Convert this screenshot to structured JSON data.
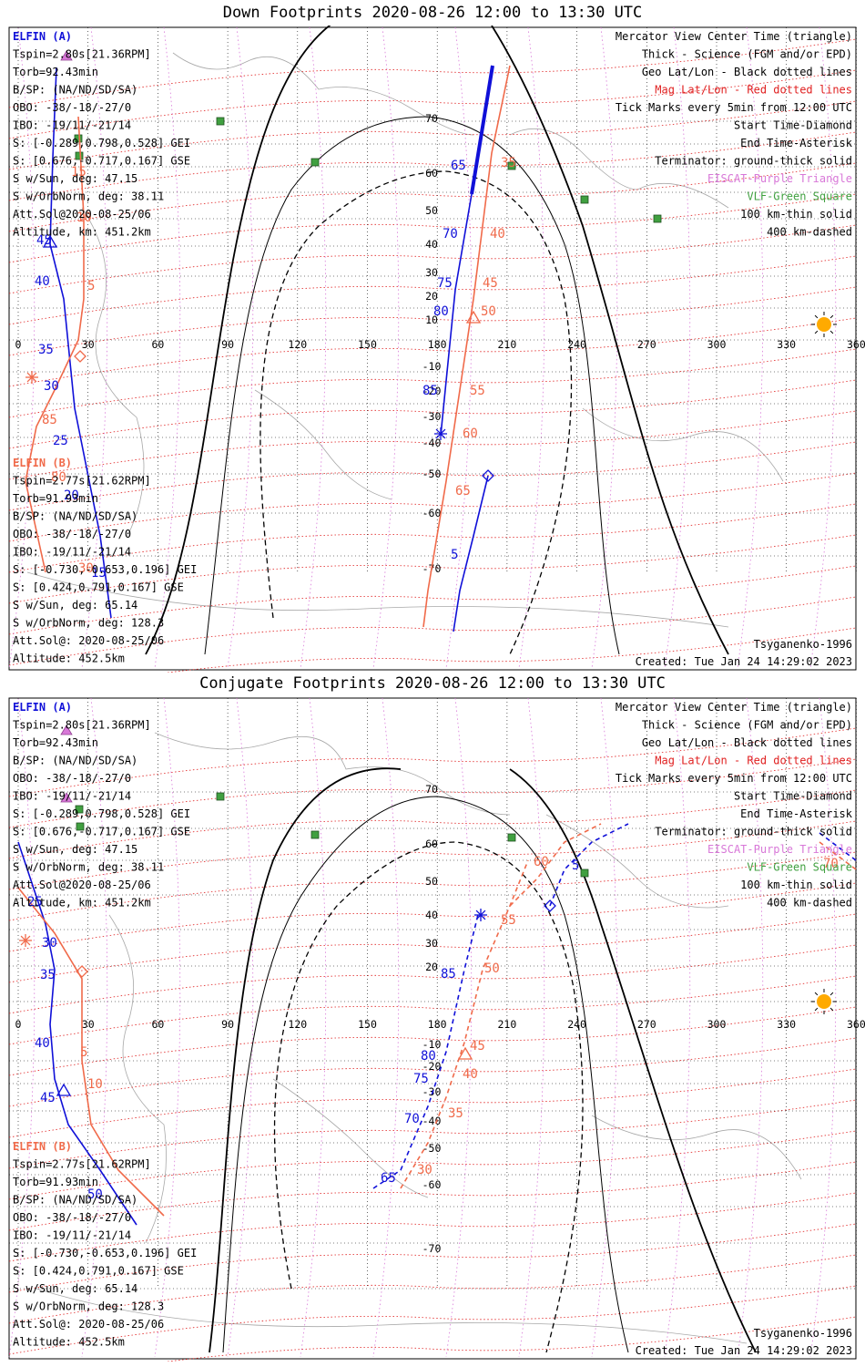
{
  "colors": {
    "elfin_a": "#1010d8",
    "elfin_b": "#f06a4a",
    "geo_grid": "#000000",
    "mag_grid": "#e02020",
    "eiscat": "#d878d8",
    "vlf": "#40a040",
    "coast": "#a8a8a8",
    "sun": "#ffaa00"
  },
  "lon_ticks": [
    "0",
    "30",
    "60",
    "90",
    "120",
    "150",
    "180",
    "210",
    "240",
    "270",
    "300",
    "330",
    "360"
  ],
  "panels": [
    {
      "title": "Down Footprints 2020-08-26 12:00 to 13:30 UTC",
      "lat_ticks": [
        "70",
        "60",
        "50",
        "40",
        "30",
        "20",
        "10",
        "-10",
        "-20",
        "-30",
        "-40",
        "-50",
        "-60",
        "-70"
      ],
      "elfin_a": {
        "name": "ELFIN (A)",
        "lines": [
          "Tspin=2.80s[21.36RPM]",
          "Torb=92.43min",
          "B/SP: (NA/ND/SD/SA)",
          "OBO: -38/-18/-27/0",
          "IBO: -19/11/-21/14",
          "S: [-0.289,0.798,0.528] GEI",
          "S: [0.676,-0.717,0.167] GSE",
          "S w/Sun, deg: 47.15",
          "S w/OrbNorm, deg: 38.11",
          "Att.Sol@2020-08-25/06",
          "Altitude, km: 451.2km"
        ]
      },
      "elfin_b": {
        "name": "ELFIN (B)",
        "lines": [
          "Tspin=2.77s[21.62RPM]",
          "Torb=91.93min",
          "B/SP: (NA/ND/SD/SA)",
          "OBO: -38/-18/-27/0",
          "IBO: -19/11/-21/14",
          "S: [-0.730,-0.653,0.196] GEI",
          "S: [0.424,0.791,0.167] GSE",
          "S w/Sun, deg: 65.14",
          "S w/OrbNorm, deg: 128.3",
          "Att.Sol@: 2020-08-25/06",
          "Altitude: 452.5km"
        ]
      },
      "legend": [
        "Mercator View Center Time (triangle)",
        "Thick - Science (FGM and/or EPD)",
        "Geo Lat/Lon - Black dotted lines",
        "Mag Lat/Lon - Red dotted lines",
        "Tick Marks every 5min from 12:00 UTC",
        "Start Time-Diamond",
        "End Time-Asterisk",
        "Terminator: ground-thick solid",
        "EISCAT-Purple Triangle",
        "VLF-Green Square",
        "100 km-thin solid",
        "400 km-dashed"
      ],
      "model": "Tsyganenko-1996",
      "created": "Created: Tue Jan 24 14:29:02 2023",
      "track_a_labels": [
        "45",
        "40",
        "35",
        "30",
        "25",
        "20",
        "15",
        "65",
        "70",
        "75",
        "80",
        "85",
        "5"
      ],
      "track_b_labels": [
        "15",
        "10",
        "5",
        "85",
        "80",
        "30",
        "35",
        "40",
        "45",
        "50",
        "55",
        "60",
        "65"
      ]
    },
    {
      "title": "Conjugate Footprints 2020-08-26 12:00 to 13:30 UTC",
      "lat_ticks": [
        "70",
        "60",
        "50",
        "40",
        "30",
        "20",
        "-10",
        "-20",
        "-30",
        "-40",
        "-50",
        "-60",
        "-70"
      ],
      "elfin_a": {
        "name": "ELFIN (A)",
        "lines": [
          "Tspin=2.80s[21.36RPM]",
          "Torb=92.43min",
          "B/SP: (NA/ND/SD/SA)",
          "OBO: -38/-18/-27/0",
          "IBO: -19/11/-21/14",
          "S: [-0.289,0.798,0.528] GEI",
          "S: [0.676,-0.717,0.167] GSE",
          "S w/Sun, deg: 47.15",
          "S w/OrbNorm, deg: 38.11",
          "Att.Sol@2020-08-25/06",
          "Altitude, km: 451.2km"
        ]
      },
      "elfin_b": {
        "name": "ELFIN (B)",
        "lines": [
          "Tspin=2.77s[21.62RPM]",
          "Torb=91.93min",
          "B/SP: (NA/ND/SD/SA)",
          "OBO: -38/-18/-27/0",
          "IBO: -19/11/-21/14",
          "S: [-0.730,-0.653,0.196] GEI",
          "S: [0.424,0.791,0.167] GSE",
          "S w/Sun, deg: 65.14",
          "S w/OrbNorm, deg: 128.3",
          "Att.Sol@: 2020-08-25/06",
          "Altitude: 452.5km"
        ]
      },
      "legend": [
        "Mercator View Center Time (triangle)",
        "Thick - Science (FGM and/or EPD)",
        "Geo Lat/Lon - Black dotted lines",
        "Mag Lat/Lon - Red dotted lines",
        "Tick Marks every 5min from 12:00 UTC",
        "Start Time-Diamond",
        "End Time-Asterisk",
        "Terminator: ground-thick solid",
        "EISCAT-Purple Triangle",
        "VLF-Green Square",
        "100 km-thin solid",
        "400 km-dashed"
      ],
      "model": "Tsyganenko-1996",
      "created": "Created: Tue Jan 24 14:29:02 2023",
      "track_a_labels": [
        "25",
        "30",
        "35",
        "40",
        "45",
        "50",
        "85",
        "80",
        "75",
        "70",
        "65",
        "5"
      ],
      "track_b_labels": [
        "5",
        "10",
        "50",
        "45",
        "40",
        "35",
        "30",
        "55",
        "60",
        "70"
      ]
    }
  ]
}
